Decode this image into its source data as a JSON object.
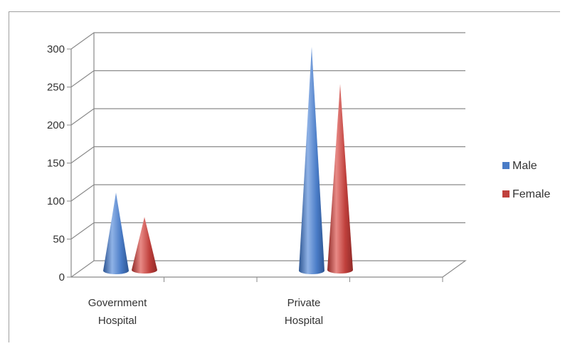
{
  "chart_data": {
    "type": "bar",
    "style": "3d-cone",
    "categories": [
      "Government Hospital",
      "Private Hospital"
    ],
    "category_lines": [
      [
        "Government",
        "Hospital"
      ],
      [
        "Private",
        "Hospital"
      ]
    ],
    "series": [
      {
        "name": "Male",
        "color": "#4a7cc7",
        "values": [
          98,
          290
        ]
      },
      {
        "name": "Female",
        "color": "#c0403c",
        "values": [
          65,
          240
        ]
      }
    ],
    "ylim": [
      0,
      300
    ],
    "yticks": [
      "0",
      "50",
      "100",
      "150",
      "200",
      "250",
      "300"
    ],
    "grid": true,
    "legend_position": "right"
  }
}
